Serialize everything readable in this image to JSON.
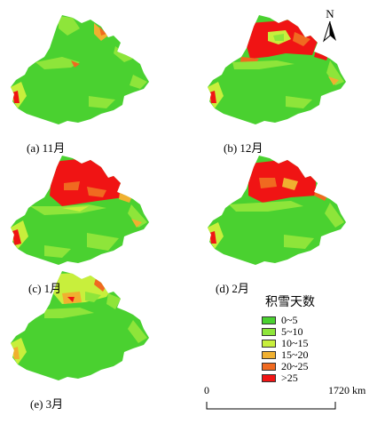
{
  "panels": [
    {
      "caption": "(a) 11月",
      "month": "11月"
    },
    {
      "caption": "(b) 12月",
      "month": "12月"
    },
    {
      "caption": "(c) 1月",
      "month": "1月"
    },
    {
      "caption": "(d) 2月",
      "month": "2月"
    },
    {
      "caption": "(e) 3月",
      "month": "3月"
    }
  ],
  "legend": {
    "title": "积雪天数",
    "items": [
      {
        "label": "0~5",
        "color": "#4ad130"
      },
      {
        "label": "5~10",
        "color": "#8ee53a"
      },
      {
        "label": "10~15",
        "color": "#c8ef3c"
      },
      {
        "label": "15~20",
        "color": "#f0b030"
      },
      {
        "label": "20~25",
        "color": "#f06a20"
      },
      {
        "label": ">25",
        "color": "#f01414"
      }
    ]
  },
  "scale_bar": {
    "start_label": "0",
    "end_label": "1720 km"
  },
  "north_arrow": {
    "label": "N"
  }
}
